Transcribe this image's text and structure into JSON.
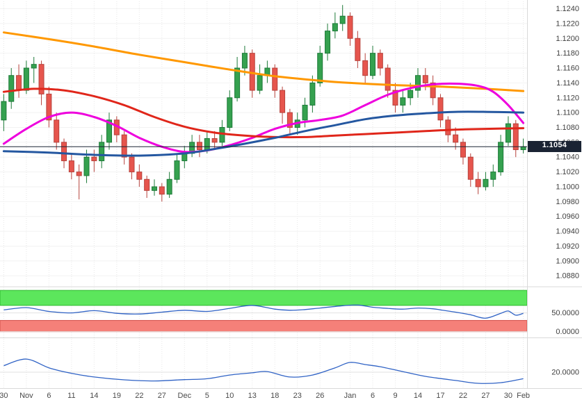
{
  "chart_data": {
    "type": "candlestick",
    "panes": [
      "price-with-moving-averages",
      "oscillator-banded",
      "oscillator-plain"
    ],
    "main": {
      "ylim": [
        1.0868,
        1.1248
      ],
      "ytick_labels": [
        "1.1240",
        "1.1220",
        "1.1200",
        "1.1180",
        "1.1160",
        "1.1140",
        "1.1120",
        "1.1100",
        "1.1080",
        "1.1060",
        "1.1040",
        "1.1020",
        "1.1000",
        "1.0980",
        "1.0960",
        "1.0940",
        "1.0920",
        "1.0900",
        "1.0880"
      ],
      "last_price": 1.1054,
      "last_price_label": "1.1054",
      "candles": [
        [
          1.109,
          1.1125,
          1.1075,
          1.1115
        ],
        [
          1.1115,
          1.116,
          1.1105,
          1.115
        ],
        [
          1.115,
          1.1165,
          1.112,
          1.113
        ],
        [
          1.113,
          1.117,
          1.1125,
          1.116
        ],
        [
          1.116,
          1.1175,
          1.114,
          1.1165
        ],
        [
          1.1165,
          1.117,
          1.111,
          1.1125
        ],
        [
          1.1125,
          1.1135,
          1.108,
          1.109
        ],
        [
          1.109,
          1.11,
          1.105,
          1.106
        ],
        [
          1.106,
          1.1065,
          1.1025,
          1.1035
        ],
        [
          1.1035,
          1.1045,
          1.101,
          1.102
        ],
        [
          1.102,
          1.103,
          1.0983,
          1.1015
        ],
        [
          1.1015,
          1.105,
          1.1005,
          1.104
        ],
        [
          1.104,
          1.105,
          1.102,
          1.1035
        ],
        [
          1.1035,
          1.107,
          1.1025,
          1.106
        ],
        [
          1.106,
          1.11,
          1.105,
          1.109
        ],
        [
          1.109,
          1.1095,
          1.106,
          1.107
        ],
        [
          1.107,
          1.1075,
          1.103,
          1.104
        ],
        [
          1.104,
          1.1045,
          1.101,
          1.102
        ],
        [
          1.102,
          1.103,
          1.1,
          1.101
        ],
        [
          1.101,
          1.1015,
          1.0985,
          1.0995
        ],
        [
          1.0995,
          1.101,
          1.0988,
          1.1
        ],
        [
          1.1,
          1.1005,
          1.098,
          1.099
        ],
        [
          1.099,
          1.102,
          1.0985,
          1.101
        ],
        [
          1.101,
          1.1045,
          1.1005,
          1.1035
        ],
        [
          1.1035,
          1.1055,
          1.1025,
          1.1045
        ],
        [
          1.1045,
          1.107,
          1.104,
          1.106
        ],
        [
          1.106,
          1.107,
          1.104,
          1.105
        ],
        [
          1.105,
          1.1075,
          1.1045,
          1.1065
        ],
        [
          1.1065,
          1.1075,
          1.105,
          1.106
        ],
        [
          1.106,
          1.109,
          1.1055,
          1.108
        ],
        [
          1.108,
          1.113,
          1.1075,
          1.112
        ],
        [
          1.112,
          1.1175,
          1.1115,
          1.116
        ],
        [
          1.116,
          1.119,
          1.115,
          1.118
        ],
        [
          1.118,
          1.1185,
          1.112,
          1.113
        ],
        [
          1.113,
          1.1165,
          1.1125,
          1.115
        ],
        [
          1.115,
          1.117,
          1.114,
          1.116
        ],
        [
          1.116,
          1.1165,
          1.112,
          1.113
        ],
        [
          1.113,
          1.1135,
          1.1085,
          1.11
        ],
        [
          1.11,
          1.1105,
          1.107,
          1.108
        ],
        [
          1.108,
          1.11,
          1.107,
          1.109
        ],
        [
          1.109,
          1.112,
          1.108,
          1.111
        ],
        [
          1.111,
          1.115,
          1.11,
          1.114
        ],
        [
          1.114,
          1.119,
          1.1135,
          1.118
        ],
        [
          1.118,
          1.122,
          1.117,
          1.121
        ],
        [
          1.121,
          1.1235,
          1.12,
          1.122
        ],
        [
          1.122,
          1.1245,
          1.121,
          1.123
        ],
        [
          1.123,
          1.1235,
          1.119,
          1.12
        ],
        [
          1.12,
          1.121,
          1.116,
          1.117
        ],
        [
          1.117,
          1.118,
          1.114,
          1.115
        ],
        [
          1.115,
          1.119,
          1.1145,
          1.118
        ],
        [
          1.118,
          1.1185,
          1.115,
          1.116
        ],
        [
          1.116,
          1.1165,
          1.112,
          1.113
        ],
        [
          1.113,
          1.114,
          1.11,
          1.111
        ],
        [
          1.111,
          1.113,
          1.11,
          1.112
        ],
        [
          1.112,
          1.114,
          1.111,
          1.113
        ],
        [
          1.113,
          1.116,
          1.112,
          1.115
        ],
        [
          1.115,
          1.116,
          1.113,
          1.114
        ],
        [
          1.114,
          1.115,
          1.111,
          1.112
        ],
        [
          1.112,
          1.1125,
          1.108,
          1.109
        ],
        [
          1.109,
          1.1095,
          1.106,
          1.107
        ],
        [
          1.107,
          1.108,
          1.105,
          1.106
        ],
        [
          1.106,
          1.1065,
          1.103,
          1.104
        ],
        [
          1.104,
          1.1045,
          1.1,
          1.101
        ],
        [
          1.101,
          1.102,
          1.099,
          1.1
        ],
        [
          1.1,
          1.102,
          1.0995,
          1.101
        ],
        [
          1.101,
          1.103,
          1.1,
          1.102
        ],
        [
          1.102,
          1.107,
          1.1015,
          1.106
        ],
        [
          1.106,
          1.1095,
          1.1055,
          1.1085
        ],
        [
          1.1085,
          1.109,
          1.104,
          1.105
        ],
        [
          1.105,
          1.1065,
          1.1045,
          1.1054
        ]
      ],
      "ma_lines": [
        {
          "name": "sma-orange",
          "color": "#ff9800",
          "width": 3,
          "points": [
            [
              0,
              1.1208
            ],
            [
              6,
              1.1199
            ],
            [
              12,
              1.1189
            ],
            [
              18,
              1.1178
            ],
            [
              24,
              1.1168
            ],
            [
              30,
              1.1158
            ],
            [
              36,
              1.1149
            ],
            [
              42,
              1.1143
            ],
            [
              46,
              1.114
            ],
            [
              52,
              1.1137
            ],
            [
              58,
              1.1135
            ],
            [
              64,
              1.1132
            ],
            [
              69,
              1.1129
            ]
          ]
        },
        {
          "name": "sma-magenta",
          "color": "#ee00dd",
          "width": 3,
          "points": [
            [
              0,
              1.1058
            ],
            [
              3,
              1.1078
            ],
            [
              6,
              1.1094
            ],
            [
              9,
              1.11
            ],
            [
              12,
              1.1094
            ],
            [
              15,
              1.1082
            ],
            [
              18,
              1.1066
            ],
            [
              21,
              1.1054
            ],
            [
              24,
              1.1047
            ],
            [
              27,
              1.1049
            ],
            [
              30,
              1.1056
            ],
            [
              33,
              1.1066
            ],
            [
              36,
              1.1078
            ],
            [
              39,
              1.1086
            ],
            [
              42,
              1.109
            ],
            [
              45,
              1.1096
            ],
            [
              48,
              1.111
            ],
            [
              51,
              1.1124
            ],
            [
              54,
              1.1133
            ],
            [
              57,
              1.1138
            ],
            [
              60,
              1.1139
            ],
            [
              63,
              1.1136
            ],
            [
              65,
              1.1128
            ],
            [
              67,
              1.111
            ],
            [
              69,
              1.1086
            ]
          ]
        },
        {
          "name": "sma-red",
          "color": "#e0261a",
          "width": 3,
          "points": [
            [
              0,
              1.1128
            ],
            [
              4,
              1.1132
            ],
            [
              8,
              1.113
            ],
            [
              12,
              1.1122
            ],
            [
              16,
              1.111
            ],
            [
              20,
              1.1094
            ],
            [
              24,
              1.1081
            ],
            [
              28,
              1.1073
            ],
            [
              32,
              1.1069
            ],
            [
              36,
              1.1067
            ],
            [
              40,
              1.1067
            ],
            [
              44,
              1.1069
            ],
            [
              48,
              1.1071
            ],
            [
              52,
              1.1073
            ],
            [
              56,
              1.1075
            ],
            [
              60,
              1.1077
            ],
            [
              64,
              1.1078
            ],
            [
              69,
              1.1079
            ]
          ]
        },
        {
          "name": "sma-blue",
          "color": "#2457a0",
          "width": 3,
          "points": [
            [
              0,
              1.1048
            ],
            [
              6,
              1.1046
            ],
            [
              12,
              1.1043
            ],
            [
              18,
              1.1042
            ],
            [
              24,
              1.1045
            ],
            [
              28,
              1.1051
            ],
            [
              32,
              1.1058
            ],
            [
              36,
              1.1066
            ],
            [
              40,
              1.1075
            ],
            [
              44,
              1.1083
            ],
            [
              48,
              1.1091
            ],
            [
              52,
              1.1096
            ],
            [
              56,
              1.1099
            ],
            [
              60,
              1.1101
            ],
            [
              64,
              1.1101
            ],
            [
              69,
              1.11
            ]
          ]
        }
      ]
    },
    "panel1": {
      "ylim": [
        -8,
        114
      ],
      "bands": [
        {
          "from": 70,
          "to": 110,
          "fill": "#5ce65c",
          "border": "#2db82d"
        },
        {
          "from": 0,
          "to": 30,
          "fill": "#f58079",
          "border": "#d45049"
        }
      ],
      "grid_values": [
        50,
        0
      ],
      "tick_labels": [
        "50.0000",
        "0.0000"
      ],
      "line_color": "#2f62c5",
      "points": [
        [
          0,
          58
        ],
        [
          3,
          64
        ],
        [
          6,
          54
        ],
        [
          9,
          50
        ],
        [
          12,
          56
        ],
        [
          15,
          49
        ],
        [
          18,
          47
        ],
        [
          21,
          52
        ],
        [
          24,
          57
        ],
        [
          27,
          54
        ],
        [
          30,
          62
        ],
        [
          33,
          70
        ],
        [
          36,
          60
        ],
        [
          38,
          57
        ],
        [
          40,
          59
        ],
        [
          42,
          63
        ],
        [
          45,
          69
        ],
        [
          47,
          71
        ],
        [
          49,
          65
        ],
        [
          51,
          62
        ],
        [
          53,
          60
        ],
        [
          55,
          63
        ],
        [
          57,
          61
        ],
        [
          58,
          58
        ],
        [
          60,
          52
        ],
        [
          62,
          45
        ],
        [
          64,
          36
        ],
        [
          66,
          49
        ],
        [
          67,
          55
        ],
        [
          68,
          44
        ],
        [
          69,
          49
        ]
      ]
    },
    "panel2": {
      "ylim": [
        13,
        34
      ],
      "grid_values": [
        20
      ],
      "tick_labels": [
        "20.0000"
      ],
      "line_color": "#2f62c5",
      "points": [
        [
          0,
          23
        ],
        [
          3,
          26
        ],
        [
          6,
          22
        ],
        [
          9,
          19.5
        ],
        [
          12,
          17.8
        ],
        [
          16,
          16.5
        ],
        [
          20,
          16
        ],
        [
          24,
          16.6
        ],
        [
          27,
          17
        ],
        [
          30,
          18.7
        ],
        [
          33,
          19.7
        ],
        [
          35,
          20.3
        ],
        [
          38,
          17.8
        ],
        [
          41,
          18.7
        ],
        [
          44,
          22
        ],
        [
          46,
          24.5
        ],
        [
          48,
          23.5
        ],
        [
          50,
          22.5
        ],
        [
          53,
          20.3
        ],
        [
          56,
          18.1
        ],
        [
          60,
          16.2
        ],
        [
          63,
          14.9
        ],
        [
          66,
          15.2
        ],
        [
          69,
          17
        ]
      ]
    },
    "x_labels": [
      {
        "text": "30",
        "i": 0
      },
      {
        "text": "Nov",
        "i": 3
      },
      {
        "text": "6",
        "i": 6
      },
      {
        "text": "11",
        "i": 9
      },
      {
        "text": "14",
        "i": 12
      },
      {
        "text": "19",
        "i": 15
      },
      {
        "text": "22",
        "i": 18
      },
      {
        "text": "27",
        "i": 21
      },
      {
        "text": "Dec",
        "i": 24
      },
      {
        "text": "5",
        "i": 27
      },
      {
        "text": "10",
        "i": 30
      },
      {
        "text": "13",
        "i": 33
      },
      {
        "text": "18",
        "i": 36
      },
      {
        "text": "23",
        "i": 39
      },
      {
        "text": "26",
        "i": 42
      },
      {
        "text": "Jan",
        "i": 46
      },
      {
        "text": "6",
        "i": 49
      },
      {
        "text": "9",
        "i": 52
      },
      {
        "text": "14",
        "i": 55
      },
      {
        "text": "17",
        "i": 58
      },
      {
        "text": "22",
        "i": 61
      },
      {
        "text": "27",
        "i": 64
      },
      {
        "text": "30",
        "i": 67
      },
      {
        "text": "Feb",
        "i": 69
      }
    ],
    "colors": {
      "up": "#35a14f",
      "up_border": "#1d7a38",
      "down": "#e6554d",
      "down_border": "#b6423c",
      "price_line": "#1a2333",
      "badge_bg": "#1a2333",
      "badge_text": "#ffffff",
      "grid_v": "#e7e7e7",
      "grid_h": "#f2f2f2",
      "separator": "#d9d9d9",
      "axis_text": "#3f3f3f",
      "xaxis_text": "#4a4a4a"
    }
  }
}
